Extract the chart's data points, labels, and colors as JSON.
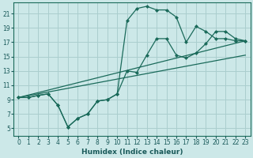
{
  "xlabel": "Humidex (Indice chaleur)",
  "bg_color": "#cce8e8",
  "grid_color": "#aacece",
  "line_color": "#1a6a5a",
  "xlim": [
    -0.5,
    23.5
  ],
  "ylim": [
    4.0,
    22.5
  ],
  "xticks": [
    0,
    1,
    2,
    3,
    4,
    5,
    6,
    7,
    8,
    9,
    10,
    11,
    12,
    13,
    14,
    15,
    16,
    17,
    18,
    19,
    20,
    21,
    22,
    23
  ],
  "yticks": [
    5,
    7,
    9,
    11,
    13,
    15,
    17,
    19,
    21
  ],
  "curve1_x": [
    0,
    1,
    2,
    3,
    4,
    5,
    6,
    7,
    8,
    9,
    10,
    11,
    12,
    13,
    14,
    15,
    16,
    17,
    18,
    19,
    20,
    21,
    22,
    23
  ],
  "curve1_y": [
    9.3,
    9.3,
    9.6,
    9.8,
    8.2,
    5.2,
    6.4,
    7.0,
    8.8,
    9.0,
    9.8,
    13.0,
    12.8,
    15.2,
    17.5,
    17.5,
    15.2,
    14.8,
    15.5,
    16.8,
    18.5,
    18.5,
    17.5,
    17.2
  ],
  "curve2_x": [
    0,
    1,
    2,
    3,
    4,
    5,
    6,
    7,
    8,
    9,
    10,
    11,
    12,
    13,
    14,
    15,
    16,
    17,
    18,
    19,
    20,
    21,
    22,
    23
  ],
  "curve2_y": [
    9.3,
    9.3,
    9.6,
    9.8,
    8.2,
    5.2,
    6.4,
    7.0,
    8.8,
    9.0,
    9.8,
    20.0,
    21.7,
    22.0,
    21.5,
    21.5,
    20.5,
    17.0,
    19.2,
    18.5,
    17.5,
    17.5,
    17.2,
    17.2
  ],
  "line3_x": [
    0,
    23
  ],
  "line3_y": [
    9.3,
    17.2
  ],
  "line4_x": [
    0,
    23
  ],
  "line4_y": [
    9.3,
    15.2
  ]
}
